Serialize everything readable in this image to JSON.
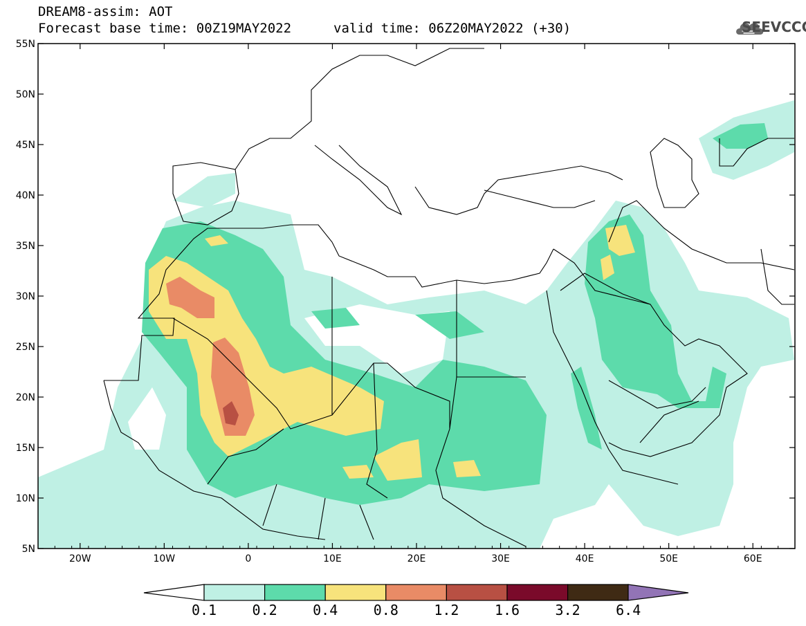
{
  "header": {
    "model": "DREAM8-assim: AOT",
    "base_time": "Forecast base time: 00Z19MAY2022",
    "valid_time": "valid time: 06Z20MAY2022 (+30)",
    "logo_text": "SEEVCCC"
  },
  "map": {
    "projection": "lat-lon",
    "lon_range": [
      -25,
      65
    ],
    "lat_range": [
      5,
      55
    ],
    "lat_ticks": [
      "5N",
      "10N",
      "15N",
      "20N",
      "25N",
      "30N",
      "35N",
      "40N",
      "45N",
      "50N",
      "55N"
    ],
    "lon_ticks": [
      "20W",
      "10W",
      "0",
      "10E",
      "20E",
      "30E",
      "40E",
      "50E",
      "60E"
    ],
    "field": "Aerosol optical thickness"
  },
  "colorbar": {
    "levels": [
      "0.1",
      "0.2",
      "0.4",
      "0.8",
      "1.2",
      "1.6",
      "3.2",
      "6.4"
    ],
    "colors": [
      "#ffffff",
      "#bff0e4",
      "#5ddbab",
      "#f7e37c",
      "#e98b66",
      "#b85043",
      "#7a0a2a",
      "#3f2a14",
      "#9274b6"
    ]
  },
  "colors": {
    "aot_01_02": "#bff0e4",
    "aot_02_04": "#5ddbab",
    "aot_04_08": "#f7e37c",
    "aot_08_12": "#e98b66",
    "aot_12_16": "#b85043"
  }
}
